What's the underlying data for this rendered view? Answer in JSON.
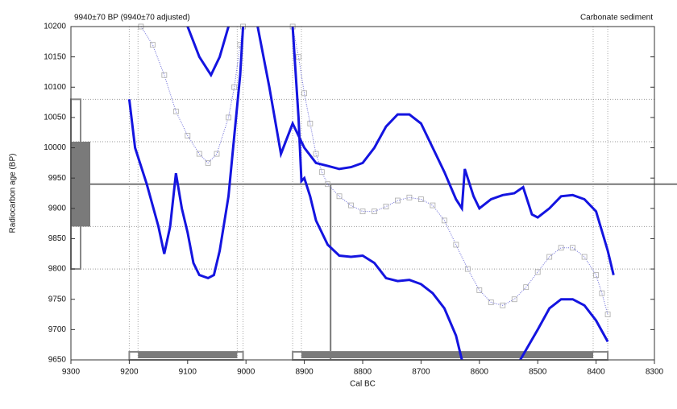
{
  "chart_data": {
    "type": "line",
    "title": "9940±70 BP (9940±70 adjusted)",
    "subtitle": "Carbonate sediment",
    "x_label": "Cal BC",
    "y_label": "Radiocarbon age (BP)",
    "xlim": [
      9300,
      8300
    ],
    "xticks": [
      9300,
      9200,
      9100,
      9000,
      8900,
      8800,
      8700,
      8600,
      8500,
      8400,
      8300
    ],
    "ylim": [
      9650,
      10200
    ],
    "yticks": [
      9650,
      9700,
      9750,
      9800,
      9850,
      9900,
      9950,
      10000,
      10050,
      10100,
      10150,
      10200
    ],
    "measured_age": 9940,
    "one_sigma_age": [
      9870,
      10010
    ],
    "two_sigma_age": [
      9800,
      10080
    ],
    "intercept": 8855,
    "one_sigma_ranges": [
      [
        9185,
        9015
      ],
      [
        8905,
        8405
      ]
    ],
    "two_sigma_ranges": [
      [
        9200,
        9005
      ],
      [
        8920,
        8380
      ]
    ],
    "series": [
      {
        "color": "#6a6ad8",
        "style": "curve",
        "x": [
          9180,
          9160,
          9140,
          9120,
          9100,
          9080,
          9065,
          9050,
          9030,
          9020,
          9010,
          9005,
          8950,
          8920,
          8910,
          8900,
          8890,
          8880,
          8870,
          8860,
          8840,
          8820,
          8800,
          8780,
          8760,
          8740,
          8720,
          8700,
          8680,
          8660,
          8640,
          8620,
          8600,
          8580,
          8560,
          8540,
          8520,
          8500,
          8480,
          8460,
          8440,
          8420,
          8400,
          8390,
          8380
        ],
        "values": [
          10200,
          10170,
          10120,
          10060,
          10020,
          9990,
          9975,
          9990,
          10050,
          10100,
          10170,
          10200,
          null,
          10200,
          10150,
          10090,
          10040,
          9990,
          9960,
          9940,
          9920,
          9905,
          9895,
          9895,
          9903,
          9913,
          9918,
          9915,
          9905,
          9880,
          9840,
          9800,
          9765,
          9745,
          9740,
          9750,
          9770,
          9795,
          9820,
          9835,
          9835,
          9820,
          9790,
          9760,
          9725
        ]
      },
      {
        "color": "#1414e0",
        "style": "envelope",
        "x": [
          9100,
          9080,
          9060,
          9045,
          9030,
          9000,
          8980,
          8960,
          8940,
          8920,
          8900,
          8880,
          8860,
          8840,
          8820,
          8800,
          8780,
          8760,
          8740,
          8720,
          8700,
          8680,
          8660,
          8640,
          8630,
          8625,
          8610,
          8600,
          8580,
          8560,
          8540,
          8525,
          8510,
          8500,
          8480,
          8460,
          8440,
          8420,
          8400,
          8380,
          8370
        ],
        "values": [
          10200,
          10150,
          10120,
          10150,
          10200,
          null,
          10200,
          10100,
          9990,
          10040,
          10000,
          9975,
          9970,
          9965,
          9968,
          9975,
          10000,
          10035,
          10055,
          10055,
          10040,
          10000,
          9960,
          9915,
          9900,
          9965,
          9920,
          9900,
          9915,
          9922,
          9925,
          9935,
          9890,
          9885,
          9900,
          9920,
          9922,
          9915,
          9895,
          9830,
          9790
        ]
      },
      {
        "color": "#1414e0",
        "style": "envelope",
        "x": [
          9200,
          9190,
          9170,
          9150,
          9140,
          9130,
          9120,
          9110,
          9100,
          9090,
          9080,
          9065,
          9055,
          9045,
          9030,
          9020,
          9010,
          9005,
          8950,
          8920,
          8910,
          8905,
          8900,
          8890,
          8880,
          8860,
          8840,
          8820,
          8800,
          8780,
          8760,
          8740,
          8720,
          8700,
          8680,
          8660,
          8640,
          8630,
          8580,
          8530,
          8500,
          8480,
          8460,
          8440,
          8420,
          8400,
          8380
        ],
        "values": [
          10080,
          10000,
          9940,
          9870,
          9825,
          9870,
          9958,
          9900,
          9860,
          9810,
          9790,
          9785,
          9790,
          9830,
          9920,
          10020,
          10120,
          10200,
          null,
          10200,
          10050,
          9945,
          9950,
          9920,
          9880,
          9840,
          9822,
          9820,
          9822,
          9810,
          9785,
          9780,
          9782,
          9775,
          9760,
          9735,
          9690,
          9650,
          null,
          9650,
          9700,
          9735,
          9750,
          9750,
          9740,
          9715,
          9680
        ]
      }
    ]
  }
}
